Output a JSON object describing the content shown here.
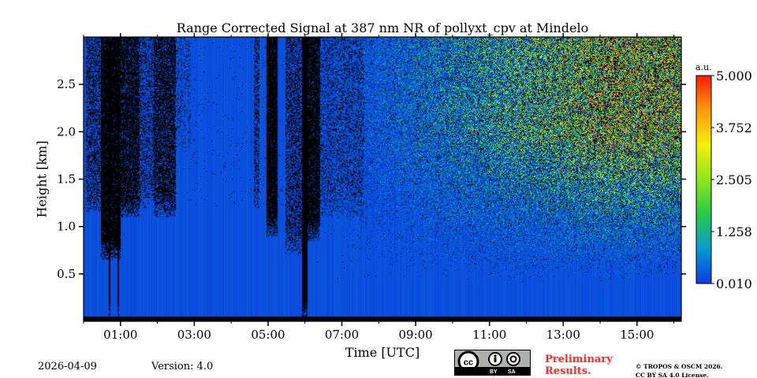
{
  "chart_data": {
    "type": "heatmap",
    "title": "Range Corrected Signal at 387 nm NR of pollyxt_cpv at Mindelo",
    "xlabel": "Time [UTC]",
    "ylabel": "Height [km]",
    "xlim_hours": [
      0,
      16.2
    ],
    "ylim": [
      0,
      3.0
    ],
    "xticks": [
      {
        "v": 1,
        "label": "01:00"
      },
      {
        "v": 3,
        "label": "03:00"
      },
      {
        "v": 5,
        "label": "05:00"
      },
      {
        "v": 7,
        "label": "07:00"
      },
      {
        "v": 9,
        "label": "09:00"
      },
      {
        "v": 11,
        "label": "11:00"
      },
      {
        "v": 13,
        "label": "13:00"
      },
      {
        "v": 15,
        "label": "15:00"
      }
    ],
    "yticks": [
      {
        "v": 0.5,
        "label": "0.5"
      },
      {
        "v": 1.0,
        "label": "1.0"
      },
      {
        "v": 1.5,
        "label": "1.5"
      },
      {
        "v": 2.0,
        "label": "2.0"
      },
      {
        "v": 2.5,
        "label": "2.5"
      }
    ],
    "colorbar": {
      "unit": "a.u.",
      "range": [
        0.01,
        5.0
      ],
      "ticks": [
        {
          "v": 0.01,
          "label": "0.010"
        },
        {
          "v": 1.258,
          "label": "1.258"
        },
        {
          "v": 2.505,
          "label": "2.505"
        },
        {
          "v": 3.752,
          "label": "3.752"
        },
        {
          "v": 5.0,
          "label": "5.000"
        }
      ],
      "colors": [
        "#0a3be0",
        "#0a9ad0",
        "#26c94a",
        "#8ee61a",
        "#f5f00a",
        "#ff9a0a",
        "#ff1a0a"
      ]
    },
    "masked_intervals": [
      {
        "t0": 0.05,
        "t1": 0.45,
        "from_km": 1.15,
        "density": 0.45
      },
      {
        "t0": 0.45,
        "t1": 1.0,
        "from_km": 0.65,
        "density": 0.95
      },
      {
        "t0": 1.0,
        "t1": 1.5,
        "from_km": 1.1,
        "density": 0.8
      },
      {
        "t0": 1.5,
        "t1": 1.9,
        "from_km": 1.2,
        "density": 0.35
      },
      {
        "t0": 1.9,
        "t1": 2.5,
        "from_km": 1.1,
        "density": 0.7
      },
      {
        "t0": 2.5,
        "t1": 2.9,
        "from_km": 1.8,
        "density": 0.15
      },
      {
        "t0": 4.6,
        "t1": 4.75,
        "from_km": 1.2,
        "density": 0.4
      },
      {
        "t0": 4.95,
        "t1": 5.25,
        "from_km": 0.9,
        "density": 0.95
      },
      {
        "t0": 5.45,
        "t1": 5.9,
        "from_km": 0.7,
        "density": 0.45
      },
      {
        "t0": 5.9,
        "t1": 6.05,
        "from_km": 0.0,
        "density": 1.0
      },
      {
        "t0": 6.05,
        "t1": 6.4,
        "from_km": 0.85,
        "density": 0.9
      },
      {
        "t0": 6.4,
        "t1": 7.6,
        "from_km": 1.1,
        "density": 0.25
      },
      {
        "t0": 0.68,
        "t1": 0.72,
        "from_km": 0.0,
        "density": 1.0
      },
      {
        "t0": 0.9,
        "t1": 0.96,
        "from_km": 0.0,
        "density": 1.0
      }
    ],
    "noise_onset_hours": 7.3,
    "surface_band_km": 0.05
  },
  "footer": {
    "date": "2026-04-09",
    "version": "Version: 4.0",
    "cc_by": "BY",
    "cc_sa": "SA",
    "preliminary_line1": "Preliminary",
    "preliminary_line2": "Results.",
    "copyright_line1": "© TROPOS & OSCM 2026.",
    "copyright_line2": "CC BY SA 4.0 License."
  },
  "colors": {
    "preliminary": "#ff2a2a"
  }
}
